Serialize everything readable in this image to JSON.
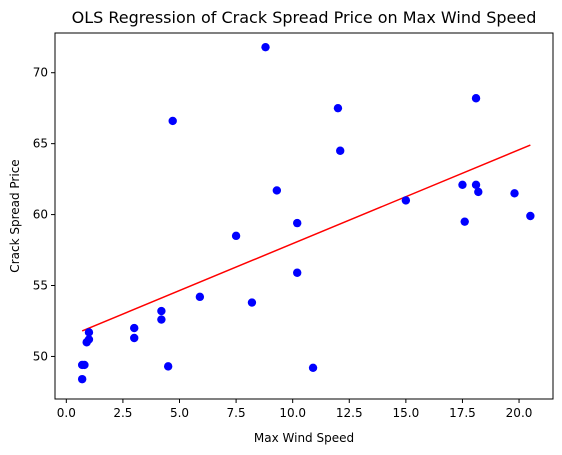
{
  "chart_data": {
    "type": "scatter",
    "title": "OLS Regression of Crack Spread Price on Max Wind Speed",
    "xlabel": "Max Wind Speed",
    "ylabel": "Crack Spread Price",
    "xlim": [
      -0.5,
      21.5
    ],
    "ylim": [
      47.0,
      72.8
    ],
    "xticks": [
      0.0,
      2.5,
      5.0,
      7.5,
      10.0,
      12.5,
      15.0,
      17.5,
      20.0
    ],
    "xtick_labels": [
      "0.0",
      "2.5",
      "5.0",
      "7.5",
      "10.0",
      "12.5",
      "15.0",
      "17.5",
      "20.0"
    ],
    "yticks": [
      50,
      55,
      60,
      65,
      70
    ],
    "ytick_labels": [
      "50",
      "55",
      "60",
      "65",
      "70"
    ],
    "grid": false,
    "point_color": "#0000ff",
    "line_color": "#ff0000",
    "points": [
      {
        "x": 0.7,
        "y": 49.4
      },
      {
        "x": 0.7,
        "y": 48.4
      },
      {
        "x": 0.8,
        "y": 49.4
      },
      {
        "x": 0.9,
        "y": 51.0
      },
      {
        "x": 1.0,
        "y": 51.2
      },
      {
        "x": 1.0,
        "y": 51.7
      },
      {
        "x": 3.0,
        "y": 52.0
      },
      {
        "x": 3.0,
        "y": 51.3
      },
      {
        "x": 4.2,
        "y": 53.2
      },
      {
        "x": 4.2,
        "y": 52.6
      },
      {
        "x": 4.5,
        "y": 49.3
      },
      {
        "x": 4.7,
        "y": 66.6
      },
      {
        "x": 5.9,
        "y": 54.2
      },
      {
        "x": 7.5,
        "y": 58.5
      },
      {
        "x": 8.2,
        "y": 53.8
      },
      {
        "x": 8.8,
        "y": 71.8
      },
      {
        "x": 9.3,
        "y": 61.7
      },
      {
        "x": 10.2,
        "y": 59.4
      },
      {
        "x": 10.2,
        "y": 55.9
      },
      {
        "x": 10.9,
        "y": 49.2
      },
      {
        "x": 12.0,
        "y": 67.5
      },
      {
        "x": 12.1,
        "y": 64.5
      },
      {
        "x": 15.0,
        "y": 61.0
      },
      {
        "x": 17.5,
        "y": 62.1
      },
      {
        "x": 17.6,
        "y": 59.5
      },
      {
        "x": 18.1,
        "y": 68.2
      },
      {
        "x": 18.1,
        "y": 62.1
      },
      {
        "x": 18.2,
        "y": 61.6
      },
      {
        "x": 19.8,
        "y": 61.5
      },
      {
        "x": 20.5,
        "y": 59.9
      }
    ],
    "regression_line": {
      "x": [
        0.7,
        20.5
      ],
      "y": [
        51.8,
        64.9
      ]
    }
  }
}
